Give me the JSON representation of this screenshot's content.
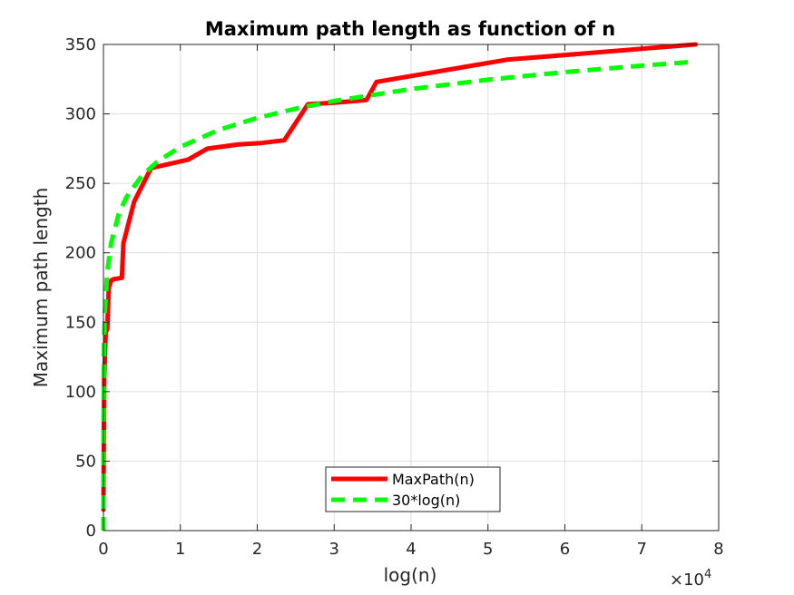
{
  "chart_data": {
    "type": "line",
    "title": "Maximum path length as function of n",
    "xlabel": "log(n)",
    "ylabel": "Maximum path length",
    "x_exponent_base": "×10",
    "x_exponent_power": "4",
    "xlim": [
      0,
      80000
    ],
    "ylim": [
      0,
      350
    ],
    "xticks": [
      0,
      10000,
      20000,
      30000,
      40000,
      50000,
      60000,
      70000,
      80000
    ],
    "xtick_labels": [
      "0",
      "1",
      "2",
      "3",
      "4",
      "5",
      "6",
      "7",
      "8"
    ],
    "yticks": [
      0,
      50,
      100,
      150,
      200,
      250,
      300,
      350
    ],
    "ytick_labels": [
      "0",
      "50",
      "100",
      "150",
      "200",
      "250",
      "300",
      "350"
    ],
    "grid": true,
    "legend_position": "bottom-center",
    "series": [
      {
        "name": "MaxPath(n)",
        "color": "#ff0000",
        "style": "solid",
        "x": [
          1,
          100,
          300,
          500,
          700,
          1000,
          1300,
          2400,
          2600,
          4000,
          6200,
          11000,
          13500,
          17500,
          20500,
          23500,
          26600,
          30000,
          34200,
          35500,
          52500,
          77000
        ],
        "y": [
          15,
          110,
          143,
          145,
          175,
          180,
          181,
          182,
          207,
          237,
          261,
          267,
          275,
          278,
          279,
          281,
          307,
          308,
          310,
          323,
          339,
          350
        ]
      },
      {
        "name": "30*log(n)",
        "color": "#00ff00",
        "style": "dashed",
        "x": [
          1,
          2,
          5,
          10,
          20,
          50,
          100,
          200,
          500,
          1000,
          2000,
          3000,
          5000,
          7000,
          10000,
          15000,
          20000,
          25000,
          30000,
          40000,
          50000,
          60000,
          70000,
          77000
        ],
        "y": [
          0,
          20.8,
          48.3,
          69.1,
          89.9,
          117.4,
          138.2,
          159,
          186.4,
          207.2,
          228,
          240.2,
          255.5,
          265.6,
          276.3,
          288.5,
          297.1,
          303.8,
          309.3,
          317.9,
          324.6,
          330.1,
          334.7,
          337.6
        ]
      }
    ]
  }
}
